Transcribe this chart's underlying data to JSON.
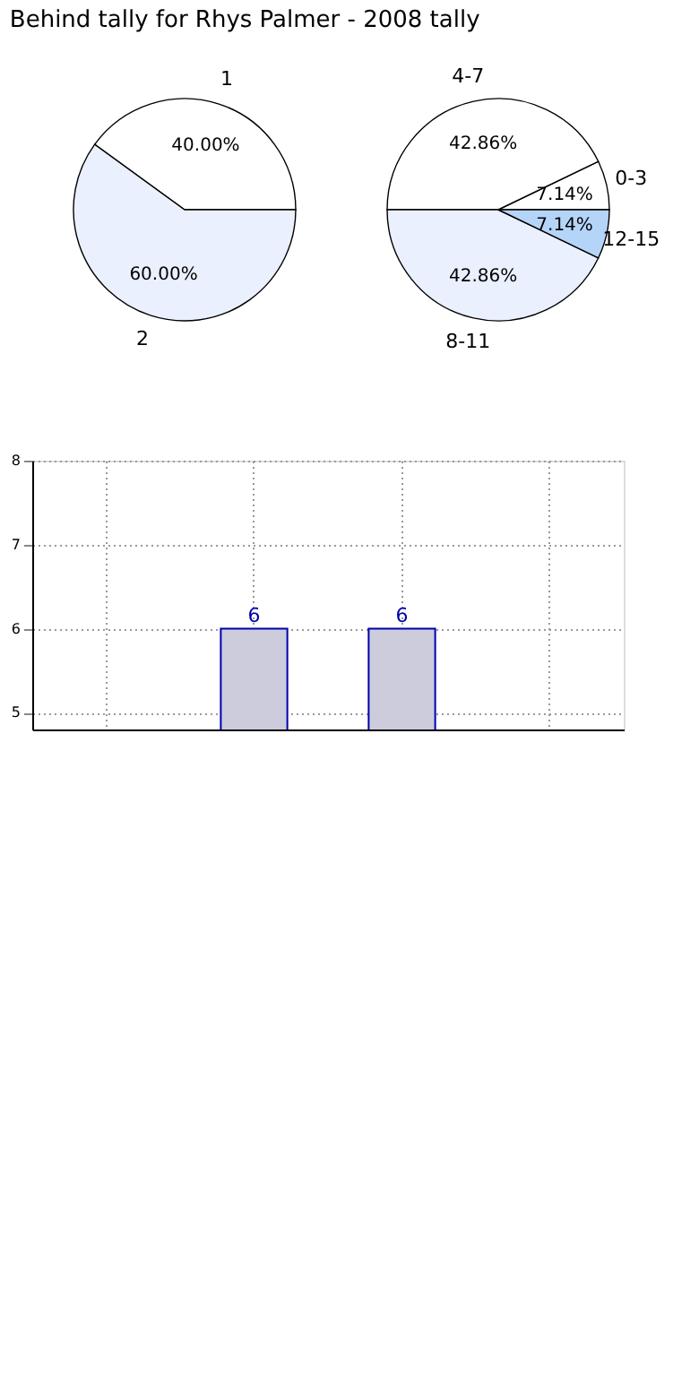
{
  "chart_data": [
    {
      "type": "pie",
      "title": "Behind tally for Rhys Palmer - 2008 tally",
      "categories": [
        "1",
        "2"
      ],
      "values": [
        40,
        60
      ],
      "colors": [
        "#ffffff",
        "#eaf0fd"
      ],
      "value_labels": [
        "40.00%",
        "60.00%"
      ]
    },
    {
      "type": "pie",
      "categories": [
        "0-3",
        "4-7",
        "8-11",
        "12-15"
      ],
      "values": [
        7.14,
        42.86,
        42.86,
        7.14
      ],
      "colors": [
        "#ffffff",
        "#ffffff",
        "#eaf0fd",
        "#b5d5f8"
      ],
      "value_labels": [
        "7.14%",
        "42.86%",
        "42.86%",
        "7.14%"
      ]
    },
    {
      "type": "bar",
      "categories": [
        null,
        null,
        null,
        null
      ],
      "series": [
        {
          "color": "#ccccdd",
          "values": [
            null,
            6,
            6,
            null
          ]
        }
      ],
      "ylim": [
        4.8,
        8
      ],
      "yticks": [
        5,
        6,
        7,
        8
      ],
      "grid": true,
      "data_labels": true,
      "tick_labels": "y"
    }
  ]
}
